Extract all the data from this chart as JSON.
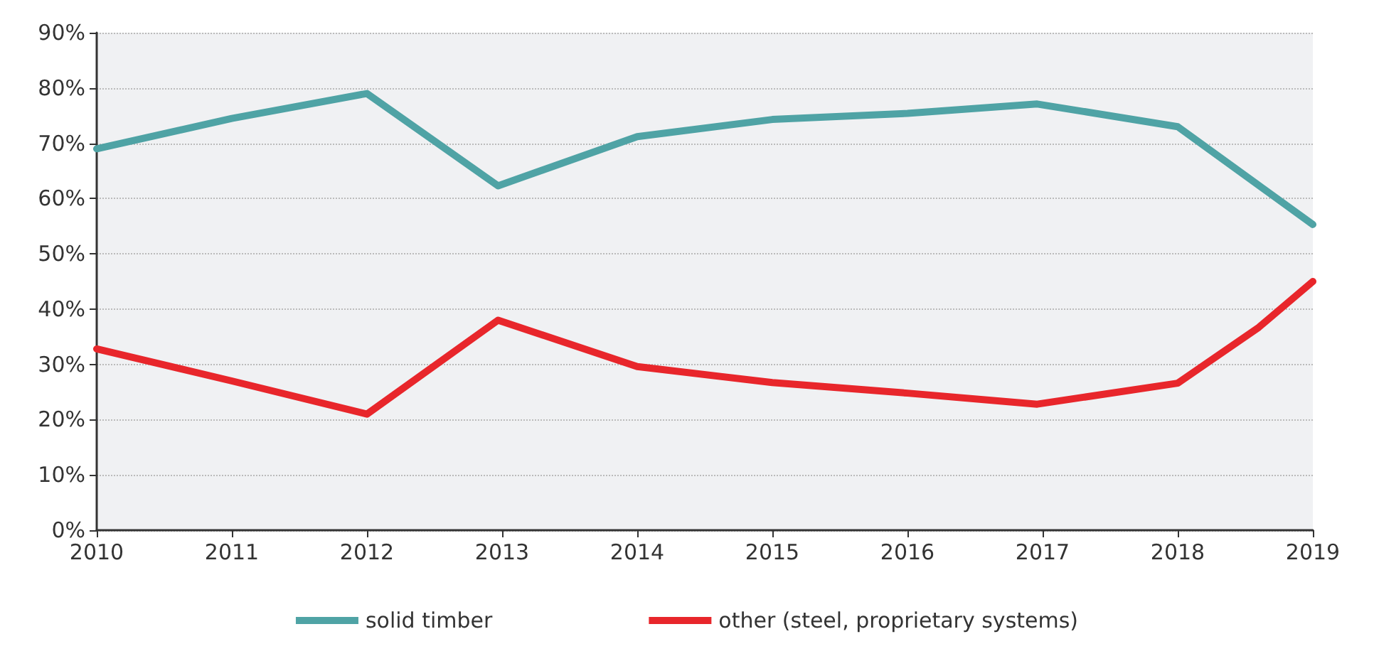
{
  "chart_data": {
    "type": "line",
    "x": [
      2010,
      2011,
      2012,
      2012.97,
      2014,
      2015,
      2016,
      2016.96,
      2018,
      2019
    ],
    "series": [
      {
        "name": "solid timber",
        "color": "#4fa3a5",
        "values": [
          69,
          74.5,
          79,
          62.3,
          71.2,
          74.3,
          75.4,
          77.1,
          73,
          55.3
        ]
      },
      {
        "name": "other (steel, proprietary systems)",
        "color": "#e8262b",
        "x": [
          2010,
          2011,
          2012,
          2012.97,
          2014,
          2015,
          2016,
          2016.96,
          2018,
          2018.6,
          2019
        ],
        "values": [
          32.8,
          27,
          21,
          38,
          29.6,
          26.7,
          24.8,
          22.8,
          26.6,
          36.7,
          45
        ]
      }
    ],
    "xlim": [
      2010,
      2019
    ],
    "xticks": [
      2010,
      2011,
      2012,
      2013,
      2014,
      2015,
      2016,
      2017,
      2018,
      2019
    ],
    "ylim": [
      0,
      90
    ],
    "yticks": [
      {
        "value": 0,
        "label": "0%"
      },
      {
        "value": 10,
        "label": "10%"
      },
      {
        "value": 20,
        "label": "20%"
      },
      {
        "value": 30,
        "label": "30%"
      },
      {
        "value": 40,
        "label": "40%"
      },
      {
        "value": 50,
        "label": "50%"
      },
      {
        "value": 60,
        "label": "60%"
      },
      {
        "value": 70,
        "label": "70%"
      },
      {
        "value": 80,
        "label": "80%"
      },
      {
        "value": 90,
        "label": "90%"
      }
    ],
    "grid": "y",
    "legend": "bottom",
    "marker": "none",
    "line_style": "solid"
  }
}
